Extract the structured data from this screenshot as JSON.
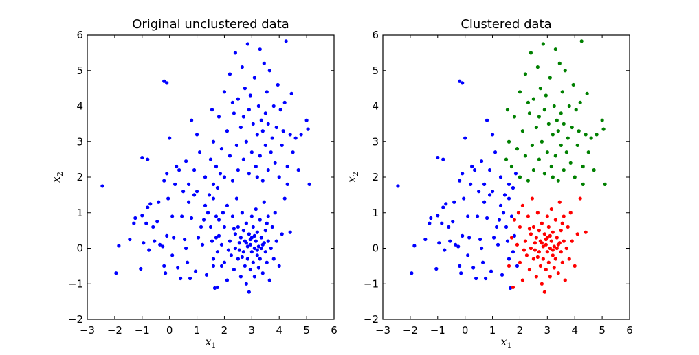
{
  "chart_data": [
    {
      "type": "scatter",
      "title": "Original unclustered data",
      "xlabel": "x1",
      "ylabel": "x2",
      "xlim": [
        -3,
        6
      ],
      "ylim": [
        -2,
        6
      ],
      "xticks": [
        -3,
        -2,
        -1,
        0,
        1,
        2,
        3,
        4,
        5,
        6
      ],
      "yticks": [
        -2,
        -1,
        0,
        1,
        2,
        3,
        4,
        5,
        6
      ],
      "grid": false,
      "color": "#0000ff",
      "points_from": "clusters"
    },
    {
      "type": "scatter",
      "title": "Clustered data",
      "xlabel": "x1",
      "ylabel": "x2",
      "xlim": [
        -3,
        6
      ],
      "ylim": [
        -2,
        6
      ],
      "xticks": [
        -3,
        -2,
        -1,
        0,
        1,
        2,
        3,
        4,
        5,
        6
      ],
      "yticks": [
        -2,
        -1,
        0,
        1,
        2,
        3,
        4,
        5,
        6
      ],
      "grid": false,
      "points_from": "clusters"
    }
  ],
  "clusters": [
    {
      "color": "#0000ff",
      "points": [
        [
          -2.45,
          1.75
        ],
        [
          -1.95,
          -0.7
        ],
        [
          -1.85,
          0.07
        ],
        [
          -1.45,
          0.25
        ],
        [
          -1.3,
          0.7
        ],
        [
          -1.25,
          0.85
        ],
        [
          -1.05,
          -0.58
        ],
        [
          -1.0,
          0.92
        ],
        [
          -0.95,
          0.15
        ],
        [
          -0.85,
          0.7
        ],
        [
          -0.8,
          1.15
        ],
        [
          -0.75,
          -0.05
        ],
        [
          -0.7,
          1.25
        ],
        [
          -0.6,
          0.6
        ],
        [
          -0.55,
          0.2
        ],
        [
          -0.45,
          0.75
        ],
        [
          -0.35,
          0.1
        ],
        [
          -0.25,
          0.05
        ],
        [
          -0.2,
          -0.5
        ],
        [
          -0.15,
          -0.7
        ],
        [
          -0.1,
          0.35
        ],
        [
          -0.1,
          2.1
        ],
        [
          -0.05,
          1.4
        ],
        [
          0.1,
          -0.2
        ],
        [
          0.15,
          0.3
        ],
        [
          0.2,
          1.8
        ],
        [
          0.25,
          2.3
        ],
        [
          0.3,
          -0.55
        ],
        [
          0.4,
          -0.85
        ],
        [
          0.45,
          0.9
        ],
        [
          0.5,
          1.6
        ],
        [
          0.55,
          0.25
        ],
        [
          0.6,
          2.45
        ],
        [
          0.65,
          -0.4
        ],
        [
          0.7,
          1.3
        ],
        [
          0.75,
          -0.85
        ],
        [
          0.8,
          0.85
        ],
        [
          0.9,
          2.2
        ],
        [
          0.95,
          -0.65
        ],
        [
          1.0,
          1.6
        ],
        [
          1.05,
          0.3
        ],
        [
          1.1,
          2.7
        ],
        [
          1.2,
          0.1
        ],
        [
          1.25,
          0.8
        ],
        [
          1.3,
          2.0
        ],
        [
          1.35,
          -0.75
        ],
        [
          1.4,
          1.0
        ],
        [
          1.45,
          1.5
        ],
        [
          1.5,
          0.6
        ],
        [
          1.55,
          0.2
        ],
        [
          1.6,
          1.4
        ],
        [
          1.65,
          -1.12
        ],
        [
          1.7,
          0.9
        ],
        [
          1.75,
          1.7
        ],
        [
          1.8,
          0.35
        ],
        [
          1.85,
          2.1
        ],
        [
          -0.8,
          2.5
        ],
        [
          -1.0,
          2.55
        ],
        [
          -0.2,
          1.9
        ],
        [
          0.35,
          2.2
        ],
        [
          0.9,
          1.5
        ],
        [
          1.3,
          1.2
        ],
        [
          1.15,
          0.6
        ],
        [
          0.6,
          0.0
        ],
        [
          -0.4,
          1.3
        ],
        [
          0.1,
          0.9
        ],
        [
          1.6,
          -0.3
        ],
        [
          1.9,
          -0.5
        ],
        [
          1.75,
          -0.1
        ],
        [
          0.0,
          3.1
        ],
        [
          -0.2,
          4.7
        ],
        [
          -0.1,
          4.65
        ],
        [
          0.8,
          3.6
        ],
        [
          1.0,
          3.2
        ],
        [
          1.6,
          1.8
        ],
        [
          0.7,
          1.8
        ]
      ]
    },
    {
      "color": "#008000",
      "points": [
        [
          1.5,
          2.5
        ],
        [
          1.6,
          3.0
        ],
        [
          1.7,
          2.3
        ],
        [
          1.8,
          3.7
        ],
        [
          1.9,
          2.8
        ],
        [
          2.0,
          4.4
        ],
        [
          2.0,
          2.0
        ],
        [
          2.1,
          3.3
        ],
        [
          2.2,
          4.9
        ],
        [
          2.2,
          2.6
        ],
        [
          2.3,
          1.9
        ],
        [
          2.35,
          3.8
        ],
        [
          2.4,
          5.5
        ],
        [
          2.45,
          2.9
        ],
        [
          2.5,
          4.2
        ],
        [
          2.5,
          2.2
        ],
        [
          2.6,
          3.4
        ],
        [
          2.65,
          5.1
        ],
        [
          2.7,
          2.5
        ],
        [
          2.75,
          4.5
        ],
        [
          2.8,
          3.0
        ],
        [
          2.85,
          5.75
        ],
        [
          2.9,
          2.1
        ],
        [
          2.9,
          3.9
        ],
        [
          2.95,
          4.3
        ],
        [
          3.0,
          2.7
        ],
        [
          3.05,
          3.5
        ],
        [
          3.1,
          4.8
        ],
        [
          3.15,
          2.3
        ],
        [
          3.2,
          3.2
        ],
        [
          3.25,
          4.0
        ],
        [
          3.3,
          5.6
        ],
        [
          3.3,
          2.6
        ],
        [
          3.35,
          3.6
        ],
        [
          3.4,
          1.9
        ],
        [
          3.4,
          3.3
        ],
        [
          3.45,
          5.2
        ],
        [
          3.5,
          2.9
        ],
        [
          3.5,
          3.8
        ],
        [
          3.55,
          4.4
        ],
        [
          3.6,
          2.2
        ],
        [
          3.6,
          3.5
        ],
        [
          3.65,
          5.0
        ],
        [
          3.7,
          2.7
        ],
        [
          3.75,
          3.1
        ],
        [
          3.8,
          4.0
        ],
        [
          3.85,
          2.4
        ],
        [
          3.9,
          3.4
        ],
        [
          3.95,
          4.6
        ],
        [
          4.0,
          2.0
        ],
        [
          4.05,
          3.9
        ],
        [
          4.1,
          2.9
        ],
        [
          4.15,
          3.3
        ],
        [
          4.2,
          4.1
        ],
        [
          4.25,
          5.83
        ],
        [
          4.3,
          2.3
        ],
        [
          4.4,
          3.2
        ],
        [
          4.45,
          4.35
        ],
        [
          4.5,
          2.7
        ],
        [
          4.6,
          3.1
        ],
        [
          4.7,
          2.2
        ],
        [
          4.8,
          3.2
        ],
        [
          5.0,
          3.6
        ],
        [
          5.05,
          3.35
        ],
        [
          5.1,
          1.8
        ],
        [
          4.3,
          1.8
        ],
        [
          3.2,
          2.0
        ],
        [
          2.7,
          3.7
        ],
        [
          1.55,
          3.9
        ],
        [
          2.3,
          4.1
        ]
      ]
    },
    {
      "color": "#ff0000",
      "points": [
        [
          1.6,
          -0.5
        ],
        [
          1.7,
          0.3
        ],
        [
          1.75,
          -1.1
        ],
        [
          1.8,
          0.8
        ],
        [
          1.9,
          0.1
        ],
        [
          2.0,
          -0.4
        ],
        [
          2.0,
          0.6
        ],
        [
          2.1,
          1.2
        ],
        [
          2.1,
          -0.9
        ],
        [
          2.2,
          0.2
        ],
        [
          2.25,
          -0.2
        ],
        [
          2.3,
          0.9
        ],
        [
          2.35,
          -0.6
        ],
        [
          2.4,
          0.4
        ],
        [
          2.4,
          0.0
        ],
        [
          2.45,
          1.4
        ],
        [
          2.5,
          -0.3
        ],
        [
          2.5,
          0.6
        ],
        [
          2.55,
          0.15
        ],
        [
          2.6,
          -0.8
        ],
        [
          2.6,
          0.3
        ],
        [
          2.65,
          1.0
        ],
        [
          2.7,
          -0.1
        ],
        [
          2.7,
          0.5
        ],
        [
          2.75,
          -0.5
        ],
        [
          2.75,
          0.2
        ],
        [
          2.8,
          -1.0
        ],
        [
          2.8,
          0.7
        ],
        [
          2.85,
          0.05
        ],
        [
          2.85,
          -0.3
        ],
        [
          2.9,
          -1.23
        ],
        [
          2.9,
          0.4
        ],
        [
          2.95,
          0.1
        ],
        [
          2.95,
          -0.6
        ],
        [
          3.0,
          0.9
        ],
        [
          3.0,
          -0.1
        ],
        [
          3.0,
          0.3
        ],
        [
          3.05,
          -0.4
        ],
        [
          3.05,
          0.6
        ],
        [
          3.1,
          0.0
        ],
        [
          3.1,
          -0.8
        ],
        [
          3.15,
          0.2
        ],
        [
          3.15,
          1.1
        ],
        [
          3.2,
          -0.2
        ],
        [
          3.2,
          0.45
        ],
        [
          3.25,
          -0.55
        ],
        [
          3.25,
          0.05
        ],
        [
          3.3,
          0.8
        ],
        [
          3.3,
          -0.3
        ],
        [
          3.35,
          0.3
        ],
        [
          3.4,
          -0.7
        ],
        [
          3.4,
          0.1
        ],
        [
          3.45,
          1.3
        ],
        [
          3.5,
          -0.1
        ],
        [
          3.5,
          0.5
        ],
        [
          3.55,
          -0.4
        ],
        [
          3.6,
          0.2
        ],
        [
          3.6,
          0.9
        ],
        [
          3.65,
          -0.9
        ],
        [
          3.7,
          0.0
        ],
        [
          3.75,
          0.6
        ],
        [
          3.8,
          -0.3
        ],
        [
          3.85,
          1.0
        ],
        [
          3.9,
          0.2
        ],
        [
          4.0,
          -0.5
        ],
        [
          4.1,
          0.4
        ],
        [
          4.2,
          1.4
        ],
        [
          4.4,
          0.45
        ],
        [
          3.35,
          0.0
        ],
        [
          2.65,
          -0.25
        ],
        [
          2.95,
          0.25
        ],
        [
          3.1,
          0.35
        ],
        [
          2.55,
          -0.05
        ],
        [
          3.45,
          0.15
        ],
        [
          2.8,
          0.15
        ],
        [
          3.2,
          -0.05
        ],
        [
          2.35,
          0.55
        ],
        [
          1.95,
          1.0
        ],
        [
          2.15,
          -0.05
        ],
        [
          3.55,
          0.7
        ]
      ]
    }
  ]
}
